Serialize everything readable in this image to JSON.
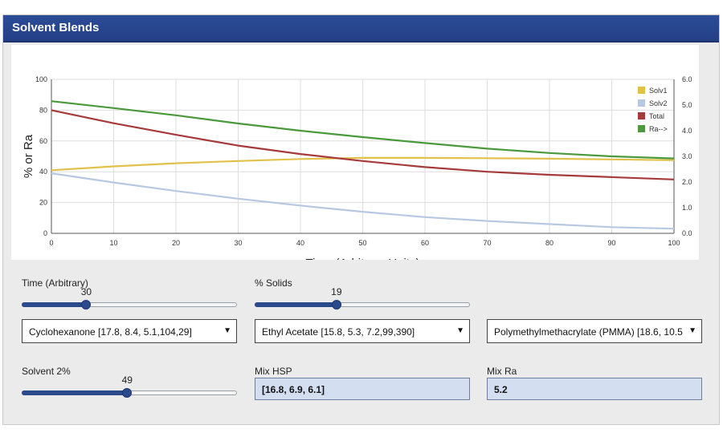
{
  "window": {
    "title": "Solvent Blends"
  },
  "chart_data": {
    "type": "line",
    "title": "",
    "xlabel": "Time (Arbitrary Units)",
    "ylabel": "% or Ra",
    "xlim": [
      0,
      100
    ],
    "ylim": [
      0,
      100
    ],
    "y2lim": [
      0,
      6
    ],
    "x_ticks": [
      "0",
      "10",
      "20",
      "30",
      "40",
      "50",
      "60",
      "70",
      "80",
      "90",
      "100"
    ],
    "y_ticks": [
      "0",
      "20",
      "40",
      "60",
      "80",
      "100"
    ],
    "y2_ticks": [
      "0.0",
      "1.0",
      "2.0",
      "3.0",
      "4.0",
      "5.0",
      "6.0"
    ],
    "grid": true,
    "legend": "top-right",
    "x": [
      0,
      10,
      20,
      30,
      40,
      50,
      60,
      70,
      80,
      90,
      100
    ],
    "series": [
      {
        "name": "Solv1",
        "color": "#e2c14b",
        "axis": "left",
        "values": [
          41,
          43.5,
          45.5,
          47,
          48.3,
          49,
          49,
          48.8,
          48.5,
          48,
          47.5
        ]
      },
      {
        "name": "Solv2",
        "color": "#b7c9e2",
        "axis": "left",
        "values": [
          39,
          33,
          27.5,
          22.5,
          18,
          14,
          10.5,
          8,
          6,
          4,
          3
        ]
      },
      {
        "name": "Total",
        "color": "#a63a3a",
        "axis": "left",
        "values": [
          80,
          71.5,
          64,
          57,
          51.5,
          47,
          43,
          40,
          38,
          36.5,
          35
        ]
      },
      {
        "name": "Ra-->",
        "color": "#4a9a3c",
        "axis": "right",
        "values": [
          5.15,
          4.88,
          4.6,
          4.28,
          4.0,
          3.75,
          3.52,
          3.3,
          3.13,
          3.0,
          2.92
        ]
      }
    ]
  },
  "controls": {
    "time": {
      "label": "Time (Arbitrary)",
      "value": "30",
      "fraction": 0.3
    },
    "solids": {
      "label": "% Solids",
      "value": "19",
      "fraction": 0.38
    },
    "solvent2": {
      "label": "Solvent 2%",
      "value": "49",
      "fraction": 0.49
    },
    "solvent1_select": {
      "value": "Cyclohexanone [17.8, 8.4, 5.1,104,29]"
    },
    "solvent2_select": {
      "value": "Ethyl Acetate [15.8, 5.3, 7.2,99,390]"
    },
    "polymer_select": {
      "value": "Polymethylmethacrylate (PMMA) [18.6, 10.5"
    },
    "mix_hsp": {
      "label": "Mix HSP",
      "value": "[16.8, 6.9, 6.1]"
    },
    "mix_ra": {
      "label": "Mix Ra",
      "value": "5.2"
    }
  }
}
